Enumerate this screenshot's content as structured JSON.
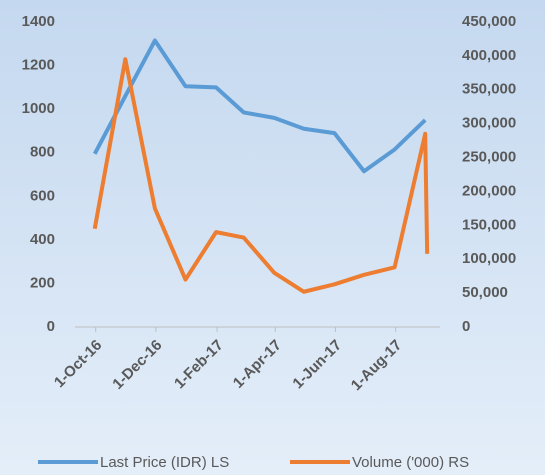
{
  "chart_data": {
    "type": "line",
    "xticks": [
      {
        "value": 42644,
        "label": "1-Oct-16"
      },
      {
        "value": 42705,
        "label": "1-Dec-16"
      },
      {
        "value": 42767,
        "label": "1-Feb-17"
      },
      {
        "value": 42826,
        "label": "1-Apr-17"
      },
      {
        "value": 42887,
        "label": "1-Jun-17"
      },
      {
        "value": 42948,
        "label": "1-Aug-17"
      }
    ],
    "xlim": [
      42623,
      42993
    ],
    "ylim": [
      0,
      1400
    ],
    "yticks": [
      0,
      200,
      400,
      600,
      800,
      1000,
      1200,
      1400
    ],
    "y2lim": [
      0,
      450000
    ],
    "y2ticks": [
      0,
      {
        "value": 50000,
        "label": "50,000"
      },
      {
        "value": 100000,
        "label": "100,000"
      },
      {
        "value": 150000,
        "label": "150,000"
      },
      {
        "value": 200000,
        "label": "200,000"
      },
      {
        "value": 250000,
        "label": "250,000"
      },
      {
        "value": 300000,
        "label": "300,000"
      },
      {
        "value": 350000,
        "label": "350,000"
      },
      {
        "value": 400000,
        "label": "400,000"
      },
      {
        "value": 450000,
        "label": "450,000"
      }
    ],
    "series": [
      {
        "name": "Last Price (IDR) LS",
        "color": "#5b9bd5",
        "x": [
          42643,
          42674,
          42704,
          42735,
          42766,
          42794,
          42825,
          42855,
          42886,
          42916,
          42947,
          42978
        ],
        "values": [
          795,
          1060,
          1315,
          1105,
          1100,
          985,
          960,
          910,
          890,
          715,
          815,
          950
        ]
      },
      {
        "name": "Volume ('000) RS",
        "color": "#ed7d31",
        "axis": "y2",
        "x": [
          42643,
          42674,
          42704,
          42735,
          42766,
          42794,
          42825,
          42855,
          42886,
          42916,
          42947,
          42978,
          42980
        ],
        "values": [
          145000,
          395000,
          175000,
          70000,
          140000,
          132000,
          80000,
          52000,
          63000,
          77000,
          88000,
          285000,
          108000
        ]
      }
    ],
    "legend": "bottom"
  }
}
